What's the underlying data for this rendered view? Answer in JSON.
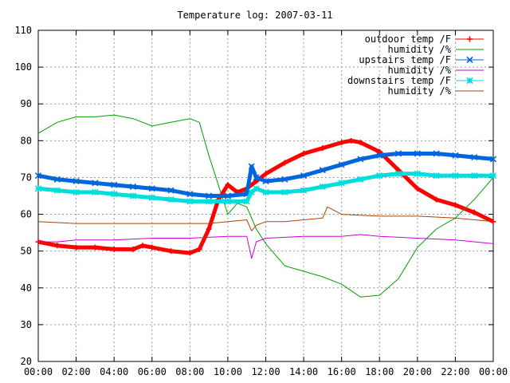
{
  "chart_data": {
    "type": "line",
    "title": "Temperature log: 2007-03-11",
    "xlabel": "",
    "ylabel": "",
    "xlim": [
      "00:00",
      "24:00"
    ],
    "ylim": [
      20,
      110
    ],
    "x_tick_labels": [
      "00:00",
      "02:00",
      "04:00",
      "06:00",
      "08:00",
      "10:00",
      "12:00",
      "14:00",
      "16:00",
      "18:00",
      "20:00",
      "22:00",
      "00:00"
    ],
    "y_tick_labels": [
      "20",
      "30",
      "40",
      "50",
      "60",
      "70",
      "80",
      "90",
      "100",
      "110"
    ],
    "grid": true,
    "legend_placement": "top-right",
    "series": [
      {
        "name": "outdoor temp /F",
        "color": "#ff0000",
        "marker": "plus",
        "x": [
          "00:00",
          "01:00",
          "02:00",
          "03:00",
          "04:00",
          "05:00",
          "05:30",
          "06:00",
          "07:00",
          "08:00",
          "08:30",
          "09:00",
          "09:30",
          "10:00",
          "10:30",
          "11:00",
          "11:30",
          "12:00",
          "13:00",
          "14:00",
          "15:00",
          "16:00",
          "16:30",
          "17:00",
          "18:00",
          "19:00",
          "20:00",
          "21:00",
          "22:00",
          "23:00",
          "24:00"
        ],
        "values": [
          52.5,
          51.5,
          51,
          51,
          50.5,
          50.5,
          51.5,
          51,
          50,
          49.5,
          50.5,
          56,
          64,
          68,
          66,
          67,
          69,
          71,
          74,
          76.5,
          78,
          79.5,
          80,
          79.5,
          77,
          72,
          67,
          64,
          62.5,
          60.5,
          58
        ]
      },
      {
        "name": "humidity /%",
        "color": "#00a000",
        "marker": "none",
        "x": [
          "00:00",
          "01:00",
          "02:00",
          "03:00",
          "04:00",
          "05:00",
          "06:00",
          "07:00",
          "08:00",
          "08:30",
          "09:00",
          "09:30",
          "10:00",
          "10:30",
          "11:00",
          "11:30",
          "12:00",
          "13:00",
          "14:00",
          "15:00",
          "16:00",
          "17:00",
          "18:00",
          "19:00",
          "20:00",
          "21:00",
          "22:00",
          "23:00",
          "24:00"
        ],
        "values": [
          82,
          85,
          86.5,
          86.5,
          87,
          86,
          84,
          85,
          86,
          85,
          76,
          68,
          60,
          63,
          62,
          56,
          52,
          46,
          44.5,
          43,
          41,
          37.5,
          38,
          42.5,
          51,
          56,
          59,
          64,
          70
        ]
      },
      {
        "name": "upstairs temp /F",
        "color": "#0066dd",
        "marker": "x",
        "x": [
          "00:00",
          "01:00",
          "02:00",
          "03:00",
          "04:00",
          "05:00",
          "06:00",
          "07:00",
          "08:00",
          "09:00",
          "10:00",
          "11:00",
          "11:15",
          "11:30",
          "12:00",
          "13:00",
          "14:00",
          "15:00",
          "16:00",
          "17:00",
          "18:00",
          "19:00",
          "20:00",
          "21:00",
          "22:00",
          "23:00",
          "24:00"
        ],
        "values": [
          70.5,
          69.5,
          69,
          68.5,
          68,
          67.5,
          67,
          66.5,
          65.5,
          65,
          65,
          65.5,
          73,
          70,
          69,
          69.5,
          70.5,
          72,
          73.5,
          75,
          76,
          76.5,
          76.5,
          76.5,
          76,
          75.5,
          75
        ]
      },
      {
        "name": "humidity /%",
        "color": "#cc00cc",
        "marker": "none",
        "x": [
          "00:00",
          "01:00",
          "02:00",
          "04:00",
          "06:00",
          "08:00",
          "10:00",
          "11:00",
          "11:15",
          "11:30",
          "12:00",
          "14:00",
          "16:00",
          "17:00",
          "18:00",
          "20:00",
          "22:00",
          "24:00"
        ],
        "values": [
          52.5,
          52.5,
          53,
          53,
          53.5,
          53.5,
          54,
          54,
          48,
          52.5,
          53.5,
          54,
          54,
          54.5,
          54,
          53.5,
          53,
          52
        ]
      },
      {
        "name": "downstairs temp /F",
        "color": "#00dddd",
        "marker": "star",
        "x": [
          "00:00",
          "01:00",
          "02:00",
          "03:00",
          "04:00",
          "05:00",
          "06:00",
          "07:00",
          "08:00",
          "09:00",
          "10:00",
          "11:00",
          "11:15",
          "11:30",
          "12:00",
          "13:00",
          "14:00",
          "15:00",
          "16:00",
          "17:00",
          "18:00",
          "19:00",
          "20:00",
          "21:00",
          "22:00",
          "23:00",
          "24:00"
        ],
        "values": [
          67,
          66.5,
          66,
          66,
          65.5,
          65,
          64.5,
          64,
          63.5,
          63.5,
          63.5,
          63.5,
          66,
          67,
          66,
          66,
          66.5,
          67.5,
          68.5,
          69.5,
          70.5,
          71,
          71,
          70.5,
          70.5,
          70.5,
          70.5
        ]
      },
      {
        "name": "humidity /%",
        "color": "#aa4400",
        "marker": "none",
        "x": [
          "00:00",
          "02:00",
          "04:00",
          "06:00",
          "08:00",
          "09:00",
          "10:00",
          "11:00",
          "11:15",
          "11:30",
          "12:00",
          "13:00",
          "14:00",
          "15:00",
          "15:15",
          "16:00",
          "18:00",
          "20:00",
          "22:00",
          "23:00",
          "24:00"
        ],
        "values": [
          58,
          57.5,
          57.5,
          57.5,
          57.5,
          57.5,
          58,
          58.5,
          55.5,
          57,
          58,
          58,
          58.5,
          59,
          62,
          60,
          59.5,
          59.5,
          59,
          58.5,
          58
        ]
      }
    ]
  }
}
